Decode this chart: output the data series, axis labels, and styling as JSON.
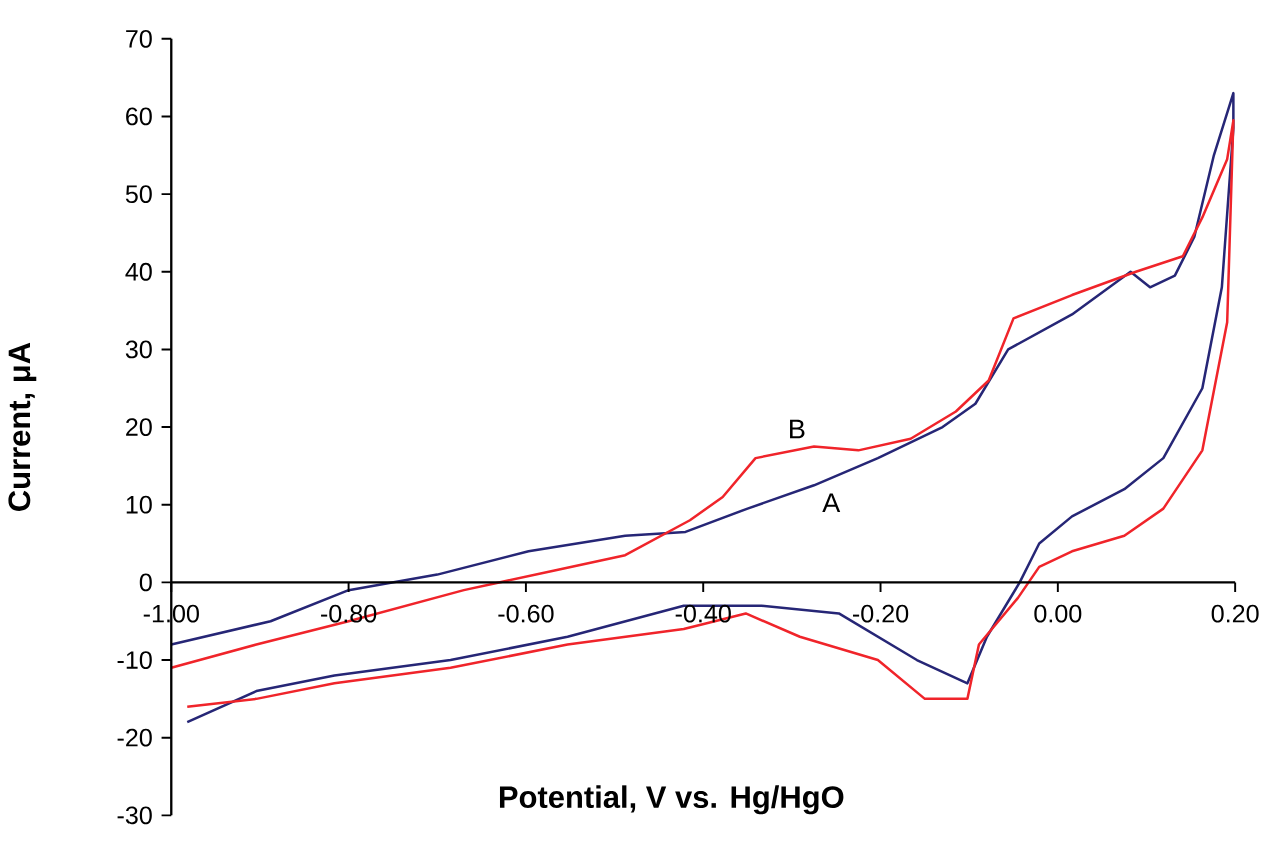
{
  "chart_data": {
    "type": "line",
    "xlabel": "Potential, V vs. Hg/HgO",
    "ylabel": "Current, μA",
    "xlim": [
      -1.0,
      0.2
    ],
    "ylim": [
      -30,
      70
    ],
    "xticks": [
      {
        "value": -1.0,
        "label": "-1.00"
      },
      {
        "value": -0.8,
        "label": "-0.80"
      },
      {
        "value": -0.6,
        "label": "-0.60"
      },
      {
        "value": -0.4,
        "label": "-0.40"
      },
      {
        "value": -0.2,
        "label": "-0.20"
      },
      {
        "value": 0.0,
        "label": "0.00"
      },
      {
        "value": 0.2,
        "label": "0.20"
      }
    ],
    "yticks": [
      -30,
      -20,
      -10,
      0,
      10,
      20,
      30,
      40,
      50,
      60,
      70
    ],
    "annotations": [
      {
        "text": "A",
        "x": -0.275,
        "y": 12.5
      },
      {
        "text": "B",
        "x": -0.275,
        "y": 17.5
      }
    ],
    "series": [
      {
        "color": "#262676",
        "x": [
          -1.0,
          -0.888,
          -0.8,
          -0.7,
          -0.597,
          -0.488,
          -0.42,
          -0.35,
          -0.275,
          -0.203,
          -0.13,
          -0.093,
          -0.056,
          0.016,
          0.082,
          0.104,
          0.132,
          0.154,
          0.176,
          0.198,
          0.198,
          0.185,
          0.163,
          0.119,
          0.075,
          0.016,
          -0.021,
          -0.043,
          -0.08,
          -0.102,
          -0.159,
          -0.247,
          -0.334,
          -0.422,
          -0.553,
          -0.685,
          -0.816,
          -0.904,
          -0.982
        ],
        "values": [
          -8,
          -5,
          -1,
          1,
          4,
          6,
          6.5,
          9.5,
          12.5,
          16,
          20,
          23,
          30,
          34.5,
          40,
          38,
          39.5,
          44.5,
          55,
          63,
          58.5,
          38,
          25,
          16,
          12,
          8.5,
          5,
          0,
          -7,
          -13,
          -10,
          -4,
          -3,
          -3,
          -7,
          -10,
          -12,
          -14,
          -18
        ]
      },
      {
        "color": "#f0242a",
        "x": [
          -1.0,
          -0.904,
          -0.8,
          -0.67,
          -0.569,
          -0.488,
          -0.415,
          -0.378,
          -0.341,
          -0.275,
          -0.225,
          -0.166,
          -0.115,
          -0.078,
          -0.05,
          0.016,
          0.088,
          0.141,
          0.163,
          0.191,
          0.198,
          0.191,
          0.163,
          0.119,
          0.075,
          0.016,
          -0.021,
          -0.045,
          -0.089,
          -0.102,
          -0.15,
          -0.203,
          -0.291,
          -0.352,
          -0.422,
          -0.553,
          -0.685,
          -0.816,
          -0.904,
          -0.982
        ],
        "values": [
          -11,
          -8,
          -5,
          -1,
          1.5,
          3.5,
          8,
          11,
          16,
          17.5,
          17,
          18.5,
          22,
          26,
          34,
          37,
          40,
          42,
          47,
          54.5,
          59.5,
          33.5,
          17,
          9.5,
          6,
          4,
          2,
          -2,
          -8,
          -15,
          -15,
          -10,
          -7,
          -4,
          -6,
          -8,
          -11,
          -13,
          -15,
          -16
        ]
      }
    ]
  }
}
